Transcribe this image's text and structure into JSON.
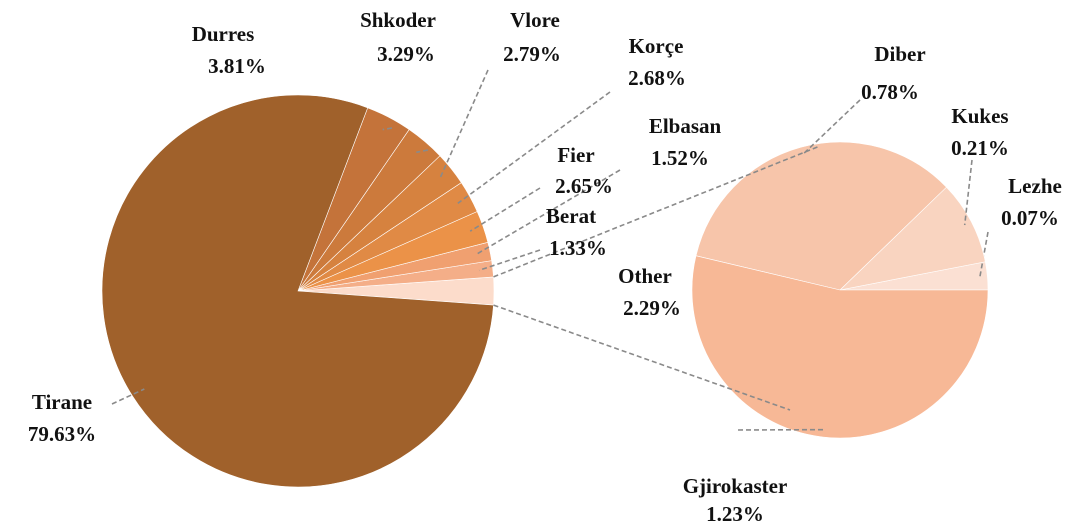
{
  "chart_data": {
    "type": "pie-of-pie",
    "categories": [
      "Tirane",
      "Durres",
      "Shkoder",
      "Vlore",
      "Korçe",
      "Fier",
      "Elbasan",
      "Berat",
      "Other"
    ],
    "values": [
      79.63,
      3.81,
      3.29,
      2.79,
      2.68,
      2.65,
      1.52,
      1.33,
      2.29
    ],
    "value_labels": [
      "79.63%",
      "3.81%",
      "3.29%",
      "2.79%",
      "2.68%",
      "2.65%",
      "1.52%",
      "1.33%",
      "2.29%"
    ],
    "colors": [
      "#a0612b",
      "#c4733a",
      "#cc7a3c",
      "#d6823f",
      "#e08a45",
      "#eb9248",
      "#f0a070",
      "#f4ae88",
      "#fcdccb"
    ],
    "secondary": {
      "categories": [
        "Gjirokaster",
        "Diber",
        "Kukes",
        "Lezhe"
      ],
      "values": [
        1.23,
        0.78,
        0.21,
        0.07
      ],
      "value_labels": [
        "1.23%",
        "0.78%",
        "0.21%",
        "0.07%"
      ],
      "colors": [
        "#f7b896",
        "#f7c5aa",
        "#f9d4c0",
        "#fbe0d3"
      ]
    }
  }
}
